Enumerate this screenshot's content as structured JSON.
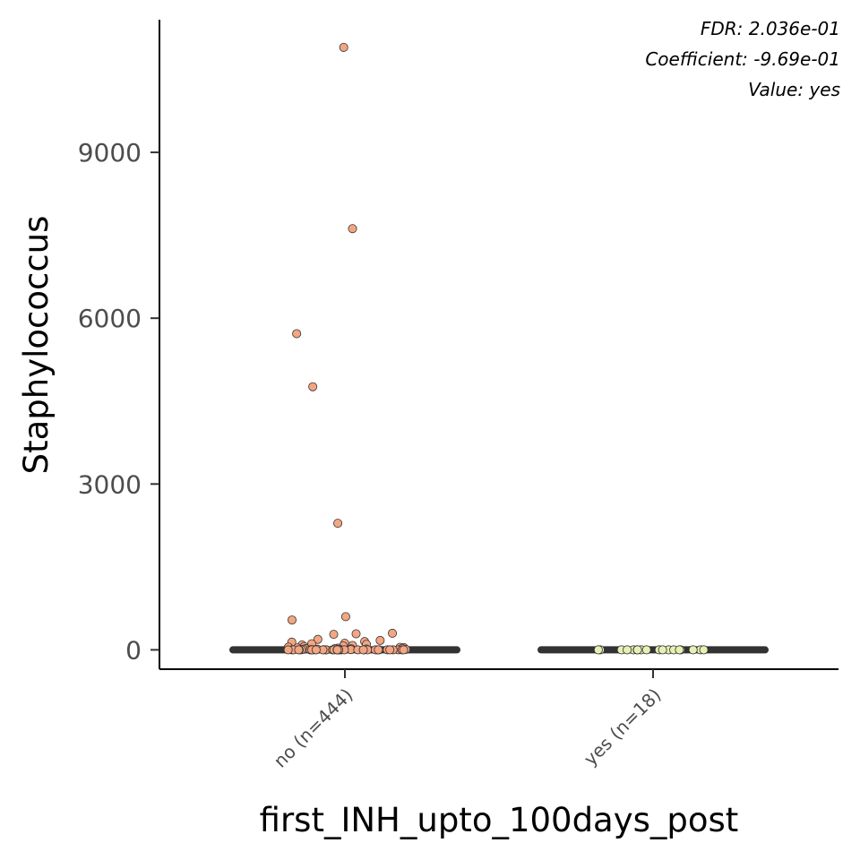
{
  "annotations": {
    "fdr": "FDR: 2.036e-01",
    "coefficient": "Coefficient: -9.69e-01",
    "value": "Value: yes"
  },
  "chart_data": {
    "type": "boxplot",
    "xlabel": "first_INH_upto_100days_post",
    "ylabel": "Staphylococcus",
    "ylim": [
      -350,
      11400
    ],
    "yticks": [
      0,
      3000,
      6000,
      9000
    ],
    "categories": [
      "no (n=444)",
      "yes (n=18)"
    ],
    "series": [
      {
        "category": "no (n=444)",
        "color": "#f4a582",
        "median": 0,
        "q1": 0,
        "q3": 0,
        "whisker_low": 0,
        "whisker_high": 0,
        "points": [
          10900,
          7620,
          5720,
          4760,
          2290,
          600,
          540,
          300,
          290,
          280,
          190,
          170,
          150,
          140,
          120,
          110,
          100,
          90,
          80,
          70,
          60,
          50,
          45,
          40,
          35,
          30,
          25,
          22,
          20,
          18,
          15,
          12,
          10,
          8,
          6,
          5,
          4,
          3,
          2,
          1,
          0,
          0,
          0,
          0,
          0,
          0,
          0,
          0,
          0,
          0,
          0,
          0,
          0,
          0,
          0,
          0,
          0,
          0,
          0,
          0,
          0,
          0,
          0,
          0,
          0,
          0,
          0,
          0,
          0,
          0,
          0,
          0,
          0,
          0,
          0,
          0
        ]
      },
      {
        "category": "yes (n=18)",
        "color": "#e6f0b4",
        "median": 0,
        "q1": 0,
        "q3": 0,
        "whisker_low": 0,
        "whisker_high": 0,
        "points": [
          0,
          0,
          0,
          0,
          0,
          0,
          0,
          0,
          0,
          0,
          0,
          0,
          0,
          0,
          0,
          0,
          0,
          0
        ]
      }
    ],
    "grid": false,
    "legend": "none"
  }
}
